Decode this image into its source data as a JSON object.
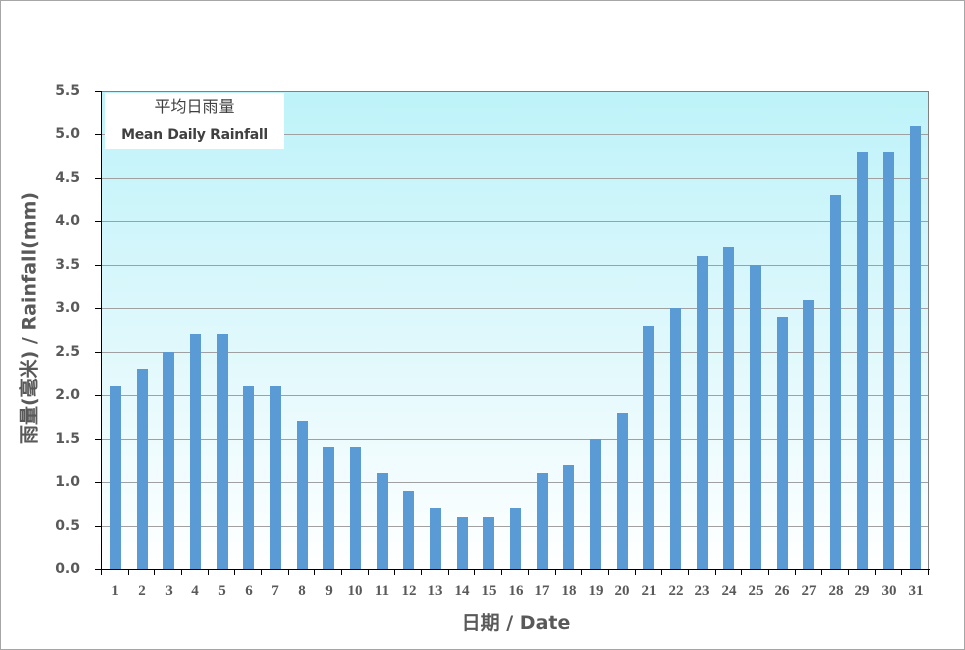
{
  "chart_data": {
    "type": "bar",
    "title_zh": "平均日雨量",
    "title": "Mean Daily Rainfall",
    "xlabel": "日期 / Date",
    "ylabel": "雨量(毫米) / Rainfall(mm)",
    "categories": [
      "1",
      "2",
      "3",
      "4",
      "5",
      "6",
      "7",
      "8",
      "9",
      "10",
      "11",
      "12",
      "13",
      "14",
      "15",
      "16",
      "17",
      "18",
      "19",
      "20",
      "21",
      "22",
      "23",
      "24",
      "25",
      "26",
      "27",
      "28",
      "29",
      "30",
      "31"
    ],
    "values": [
      2.1,
      2.3,
      2.5,
      2.7,
      2.7,
      2.1,
      2.1,
      1.7,
      1.4,
      1.4,
      1.1,
      0.9,
      0.7,
      0.6,
      0.6,
      0.7,
      1.1,
      1.2,
      1.5,
      1.8,
      2.8,
      3.0,
      3.6,
      3.7,
      3.5,
      2.9,
      3.1,
      4.3,
      4.8,
      4.8,
      5.1
    ],
    "ylim": [
      0,
      5.5
    ],
    "yticks": [
      "0.0",
      "0.5",
      "1.0",
      "1.5",
      "2.0",
      "2.5",
      "3.0",
      "3.5",
      "4.0",
      "4.5",
      "5.0",
      "5.5"
    ],
    "grid": true,
    "legend_position": "top-left",
    "bar_color": "#5b9bd5",
    "background_gradient": [
      "#bdf3f9",
      "#ffffff"
    ]
  },
  "legend": {
    "title_zh": "平均日雨量",
    "title_en": "Mean Daily Rainfall"
  },
  "axes": {
    "x_title": "日期 / Date",
    "y_title": "雨量(毫米) / Rainfall(mm)"
  }
}
